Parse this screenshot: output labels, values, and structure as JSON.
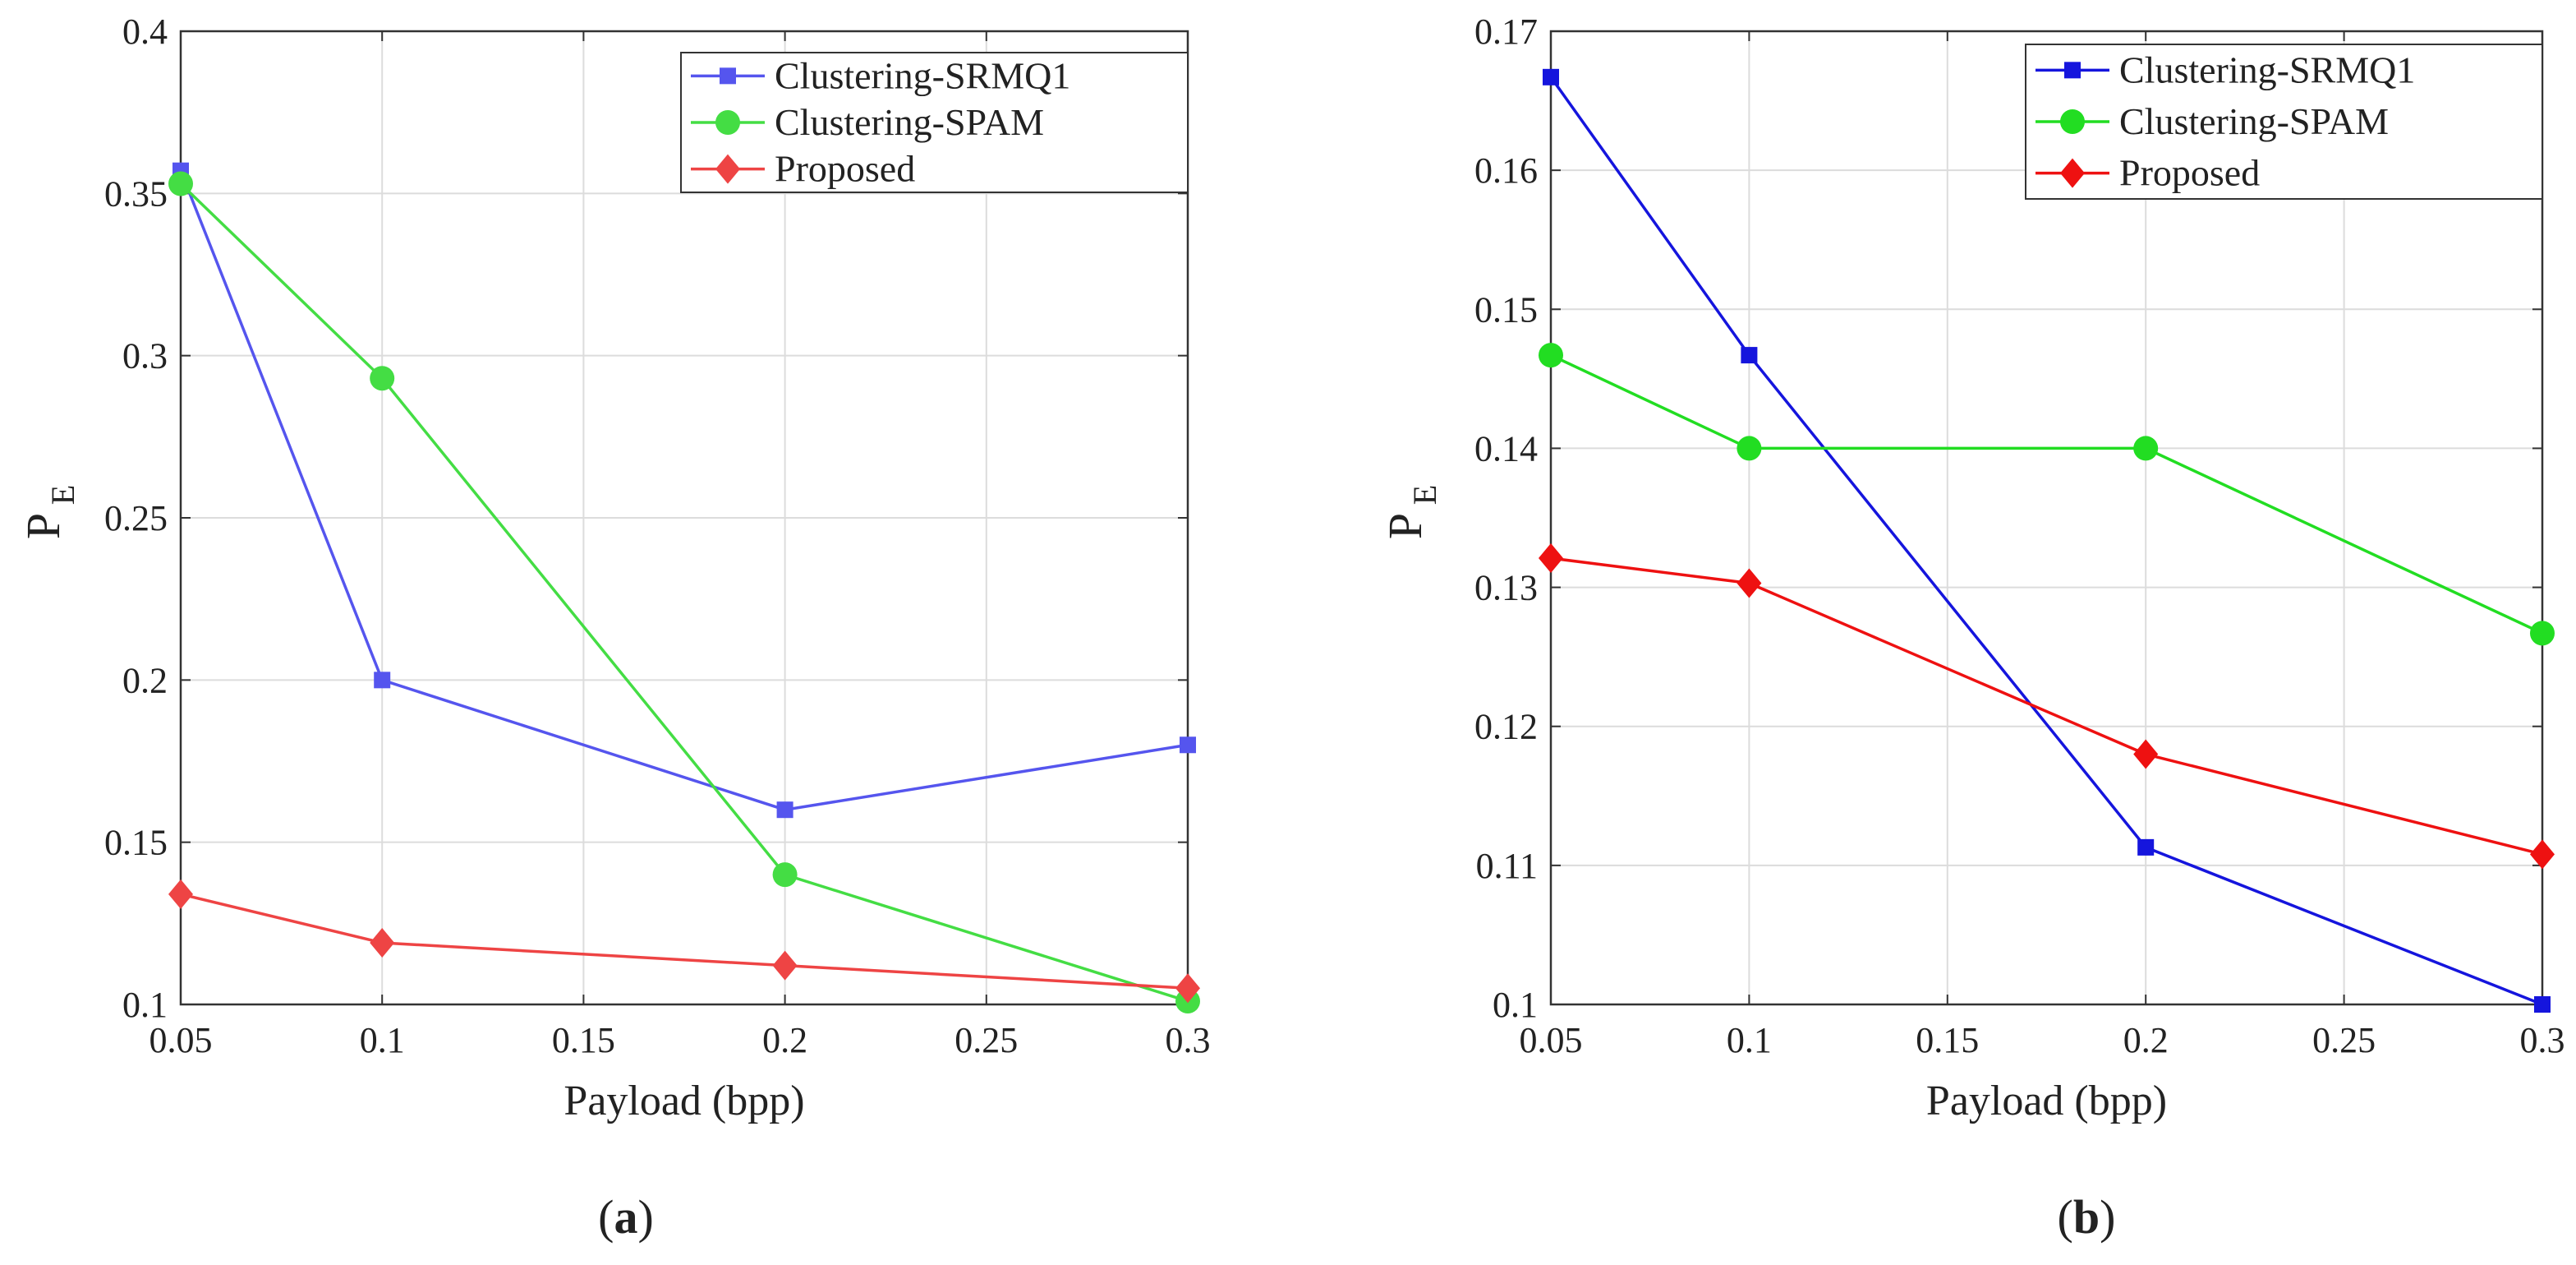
{
  "chart_data": [
    {
      "type": "line",
      "caption": "(a)",
      "caption_bold": "a",
      "xlabel": "Payload (bpp)",
      "ylabel": "P",
      "ylabel_sub": "E",
      "xlim": [
        0.05,
        0.3
      ],
      "ylim": [
        0.1,
        0.4
      ],
      "xticks": [
        0.05,
        0.1,
        0.15,
        0.2,
        0.25,
        0.3
      ],
      "yticks": [
        0.1,
        0.15,
        0.2,
        0.25,
        0.3,
        0.35,
        0.4
      ],
      "xtick_labels": [
        "0.05",
        "0.1",
        "0.15",
        "0.2",
        "0.25",
        "0.3"
      ],
      "ytick_labels": [
        "0.1",
        "0.15",
        "0.2",
        "0.25",
        "0.3",
        "0.35",
        "0.4"
      ],
      "grid": true,
      "legend_position": "top-right",
      "x": [
        0.05,
        0.1,
        0.2,
        0.3
      ],
      "series": [
        {
          "name": "Clustering-SRMQ1",
          "color": "#5555ee",
          "marker": "square",
          "values": [
            0.357,
            0.2,
            0.16,
            0.18
          ]
        },
        {
          "name": "Clustering-SPAM",
          "color": "#44dd44",
          "marker": "circle",
          "values": [
            0.353,
            0.293,
            0.14,
            0.101
          ]
        },
        {
          "name": "Proposed",
          "color": "#ee4444",
          "marker": "diamond",
          "values": [
            0.134,
            0.119,
            0.112,
            0.105
          ]
        }
      ]
    },
    {
      "type": "line",
      "caption": "(b)",
      "caption_bold": "b",
      "xlabel": "Payload (bpp)",
      "ylabel": "P",
      "ylabel_sub": "E",
      "xlim": [
        0.05,
        0.3
      ],
      "ylim": [
        0.1,
        0.17
      ],
      "xticks": [
        0.05,
        0.1,
        0.15,
        0.2,
        0.25,
        0.3
      ],
      "yticks": [
        0.1,
        0.11,
        0.12,
        0.13,
        0.14,
        0.15,
        0.16,
        0.17
      ],
      "xtick_labels": [
        "0.05",
        "0.1",
        "0.15",
        "0.2",
        "0.25",
        "0.3"
      ],
      "ytick_labels": [
        "0.1",
        "0.11",
        "0.12",
        "0.13",
        "0.14",
        "0.15",
        "0.16",
        "0.17"
      ],
      "grid": true,
      "legend_position": "top-right",
      "x": [
        0.05,
        0.1,
        0.2,
        0.3
      ],
      "series": [
        {
          "name": "Clustering-SRMQ1",
          "color": "#1515dd",
          "marker": "square",
          "values": [
            0.1667,
            0.1467,
            0.1113,
            0.1
          ]
        },
        {
          "name": "Clustering-SPAM",
          "color": "#22dd22",
          "marker": "circle",
          "values": [
            0.1467,
            0.14,
            0.14,
            0.1267
          ]
        },
        {
          "name": "Proposed",
          "color": "#ee1111",
          "marker": "diamond",
          "values": [
            0.1321,
            0.1303,
            0.118,
            0.1108
          ]
        }
      ]
    }
  ]
}
